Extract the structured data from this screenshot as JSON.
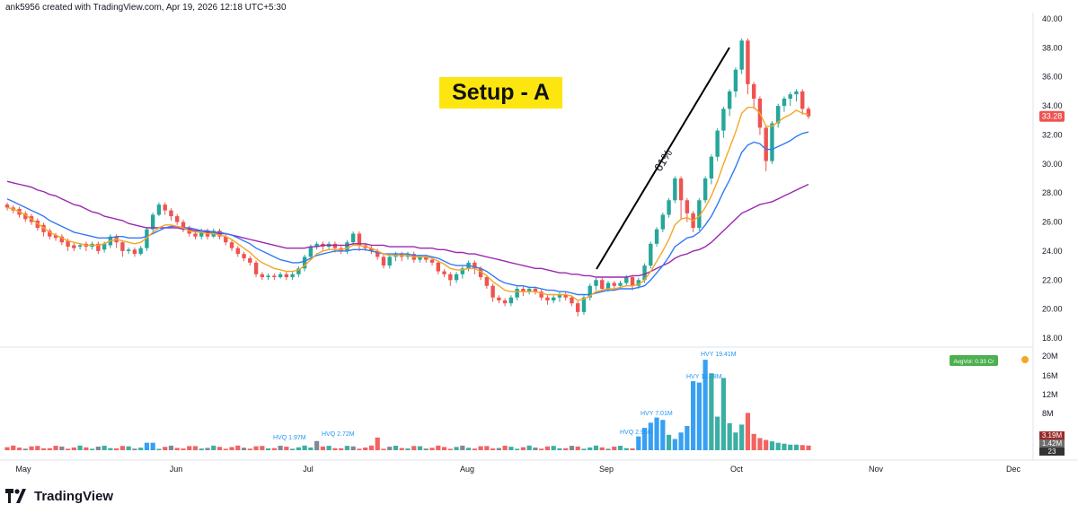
{
  "header": {
    "credit": "ank5956 created with TradingView.com, Apr 19, 2026 12:18 UTC+5:30"
  },
  "annotation": {
    "setup_label": "Setup - A",
    "move_label": "61%"
  },
  "footer": {
    "brand": "TradingView"
  },
  "colors": {
    "up": "#26a69a",
    "down": "#ef5350",
    "ema_fast": "#f5a623",
    "ema_mid": "#3179f5",
    "ema_slow": "#9c27b0",
    "hvq": "#2196f3",
    "badge": "#fde60f"
  },
  "chart_data": {
    "type": "candlestick",
    "x_ticks": [
      "May",
      "Jun",
      "Jul",
      "Aug",
      "Sep",
      "Oct",
      "Nov",
      "Dec"
    ],
    "y_ticks": [
      "40.00",
      "38.00",
      "36.00",
      "34.00",
      "32.00",
      "30.00",
      "28.00",
      "26.00",
      "24.00",
      "22.00",
      "20.00",
      "18.00"
    ],
    "ylim": [
      18,
      40
    ],
    "last_price": "33.28",
    "candles": [
      [
        27.2,
        27.0,
        26.8
      ],
      [
        27.0,
        26.8,
        26.6
      ],
      [
        26.9,
        26.5,
        26.3
      ],
      [
        26.6,
        26.2,
        26.0
      ],
      [
        26.4,
        26.0,
        25.8
      ],
      [
        26.1,
        25.6,
        25.4
      ],
      [
        25.8,
        25.3,
        25.0
      ],
      [
        25.4,
        25.0,
        24.8
      ],
      [
        25.1,
        24.9,
        24.7
      ],
      [
        25.0,
        24.6,
        24.4
      ],
      [
        24.7,
        24.3,
        24.0
      ],
      [
        24.4,
        24.2,
        24.0
      ],
      [
        24.3,
        24.4,
        24.1
      ],
      [
        24.5,
        24.3,
        24.0
      ],
      [
        24.3,
        24.5,
        24.1
      ],
      [
        24.5,
        24.0,
        23.8
      ],
      [
        24.1,
        24.5,
        23.9
      ],
      [
        24.4,
        25.0,
        24.2
      ],
      [
        25.0,
        24.6,
        24.2
      ],
      [
        24.6,
        24.0,
        23.6
      ],
      [
        24.0,
        24.1,
        23.8
      ],
      [
        24.1,
        23.8,
        23.6
      ],
      [
        23.8,
        24.2,
        23.7
      ],
      [
        24.2,
        25.5,
        24.0
      ],
      [
        25.5,
        26.5,
        25.3
      ],
      [
        26.5,
        27.2,
        26.4
      ],
      [
        27.2,
        26.8,
        26.5
      ],
      [
        26.8,
        26.4,
        26.1
      ],
      [
        26.4,
        26.0,
        25.8
      ],
      [
        26.0,
        25.6,
        25.3
      ],
      [
        25.6,
        25.2,
        25.0
      ],
      [
        25.2,
        25.0,
        24.8
      ],
      [
        25.0,
        25.4,
        24.8
      ],
      [
        25.4,
        25.0,
        24.8
      ],
      [
        25.0,
        25.4,
        24.9
      ],
      [
        25.4,
        25.0,
        24.8
      ],
      [
        25.0,
        24.6,
        24.4
      ],
      [
        24.6,
        24.2,
        24.0
      ],
      [
        24.2,
        23.8,
        23.6
      ],
      [
        23.8,
        23.5,
        23.3
      ],
      [
        23.5,
        23.2,
        23.0
      ],
      [
        23.2,
        22.4,
        22.2
      ],
      [
        22.4,
        22.2,
        22.0
      ],
      [
        22.2,
        22.3,
        22.0
      ],
      [
        22.3,
        22.2,
        22.0
      ],
      [
        22.2,
        22.4,
        22.1
      ],
      [
        22.4,
        22.2,
        22.0
      ],
      [
        22.2,
        22.4,
        22.0
      ],
      [
        22.4,
        22.8,
        22.2
      ],
      [
        22.8,
        23.6,
        22.6
      ],
      [
        23.6,
        24.3,
        23.4
      ],
      [
        24.3,
        24.5,
        24.1
      ],
      [
        24.5,
        24.3,
        24.0
      ],
      [
        24.3,
        24.5,
        24.1
      ],
      [
        24.5,
        24.2,
        23.9
      ],
      [
        24.2,
        24.0,
        23.8
      ],
      [
        24.0,
        24.6,
        23.8
      ],
      [
        24.6,
        25.2,
        24.4
      ],
      [
        25.2,
        24.4,
        24.0
      ],
      [
        24.4,
        24.2,
        24.0
      ],
      [
        24.2,
        24.0,
        23.8
      ],
      [
        24.0,
        23.6,
        23.4
      ],
      [
        23.6,
        23.0,
        22.8
      ],
      [
        23.0,
        23.6,
        22.8
      ],
      [
        23.6,
        23.8,
        23.3
      ],
      [
        23.8,
        23.6,
        23.3
      ],
      [
        23.6,
        23.8,
        23.4
      ],
      [
        23.8,
        23.4,
        23.2
      ],
      [
        23.4,
        23.6,
        23.2
      ],
      [
        23.6,
        23.4,
        23.2
      ],
      [
        23.4,
        23.2,
        23.0
      ],
      [
        23.2,
        22.6,
        22.4
      ],
      [
        22.6,
        22.4,
        22.2
      ],
      [
        22.4,
        22.0,
        21.6
      ],
      [
        22.0,
        22.4,
        21.8
      ],
      [
        22.4,
        22.8,
        22.1
      ],
      [
        22.8,
        23.2,
        22.6
      ],
      [
        23.2,
        22.8,
        22.4
      ],
      [
        22.8,
        22.2,
        22.0
      ],
      [
        22.2,
        21.6,
        21.4
      ],
      [
        21.6,
        20.8,
        20.5
      ],
      [
        20.8,
        20.6,
        20.4
      ],
      [
        20.6,
        20.4,
        20.2
      ],
      [
        20.4,
        20.8,
        20.2
      ],
      [
        20.8,
        21.4,
        20.6
      ],
      [
        21.4,
        21.2,
        20.9
      ],
      [
        21.2,
        21.4,
        21.0
      ],
      [
        21.4,
        21.2,
        21.0
      ],
      [
        21.2,
        20.8,
        20.6
      ],
      [
        20.8,
        20.6,
        20.3
      ],
      [
        20.6,
        20.8,
        20.4
      ],
      [
        20.8,
        21.0,
        20.5
      ],
      [
        21.0,
        20.8,
        20.6
      ],
      [
        20.8,
        20.4,
        20.2
      ],
      [
        20.4,
        19.8,
        19.5
      ],
      [
        19.8,
        20.8,
        19.6
      ],
      [
        20.8,
        21.6,
        20.6
      ],
      [
        21.6,
        22.0,
        21.3
      ],
      [
        22.0,
        21.4,
        21.2
      ],
      [
        21.4,
        21.8,
        21.2
      ],
      [
        21.8,
        21.6,
        21.3
      ],
      [
        21.6,
        21.8,
        21.4
      ],
      [
        21.8,
        22.2,
        21.6
      ],
      [
        22.2,
        21.6,
        21.3
      ],
      [
        21.6,
        22.0,
        21.4
      ],
      [
        22.0,
        23.0,
        21.8
      ],
      [
        23.0,
        24.5,
        22.8
      ],
      [
        24.5,
        25.5,
        24.3
      ],
      [
        25.5,
        26.5,
        25.3
      ],
      [
        26.5,
        27.5,
        26.3
      ],
      [
        27.5,
        29.0,
        27.3
      ],
      [
        29.0,
        27.5,
        26.2
      ],
      [
        27.5,
        26.6,
        26.0
      ],
      [
        26.6,
        25.6,
        25.3
      ],
      [
        25.6,
        27.5,
        25.4
      ],
      [
        27.5,
        29.0,
        27.3
      ],
      [
        29.0,
        30.5,
        28.6
      ],
      [
        30.5,
        32.3,
        30.2
      ],
      [
        32.3,
        33.8,
        31.8
      ],
      [
        33.8,
        35.0,
        33.3
      ],
      [
        35.0,
        36.5,
        34.6
      ],
      [
        36.5,
        38.5,
        36.2
      ],
      [
        38.5,
        35.5,
        34.8
      ],
      [
        35.5,
        34.5,
        33.8
      ],
      [
        34.5,
        32.5,
        32.0
      ],
      [
        32.5,
        30.2,
        29.5
      ],
      [
        30.2,
        32.8,
        30.0
      ],
      [
        32.8,
        34.0,
        32.5
      ],
      [
        34.0,
        34.5,
        33.6
      ],
      [
        34.5,
        34.8,
        34.0
      ],
      [
        34.8,
        35.0,
        34.3
      ],
      [
        35.0,
        33.8,
        33.4
      ],
      [
        33.8,
        33.28,
        33.1
      ]
    ],
    "ema_fast": [
      27.0,
      26.9,
      26.7,
      26.5,
      26.2,
      25.9,
      25.6,
      25.3,
      25.1,
      24.9,
      24.7,
      24.6,
      24.5,
      24.4,
      24.4,
      24.4,
      24.5,
      24.7,
      24.8,
      24.7,
      24.6,
      24.5,
      24.6,
      24.9,
      25.3,
      25.6,
      25.8,
      25.8,
      25.7,
      25.6,
      25.4,
      25.3,
      25.3,
      25.2,
      25.2,
      25.1,
      25.0,
      24.8,
      24.5,
      24.2,
      23.9,
      23.5,
      23.2,
      23.0,
      22.8,
      22.7,
      22.6,
      22.6,
      22.7,
      23.0,
      23.4,
      23.8,
      24.0,
      24.1,
      24.1,
      24.1,
      24.2,
      24.4,
      24.4,
      24.3,
      24.2,
      24.0,
      23.8,
      23.7,
      23.7,
      23.7,
      23.7,
      23.6,
      23.6,
      23.6,
      23.5,
      23.3,
      23.1,
      22.8,
      22.7,
      22.7,
      22.8,
      22.8,
      22.6,
      22.3,
      21.9,
      21.6,
      21.3,
      21.2,
      21.2,
      21.2,
      21.2,
      21.2,
      21.1,
      21.0,
      21.0,
      21.0,
      21.0,
      20.9,
      20.6,
      20.7,
      20.9,
      21.2,
      21.3,
      21.4,
      21.4,
      21.5,
      21.6,
      21.6,
      21.7,
      22.0,
      22.6,
      23.3,
      24.0,
      24.8,
      25.8,
      26.2,
      26.3,
      26.1,
      26.4,
      27.0,
      27.8,
      28.8,
      30.0,
      31.1,
      32.2,
      33.5,
      33.9,
      33.9,
      33.5,
      32.6,
      32.6,
      32.9,
      33.2,
      33.4,
      33.7,
      33.5,
      33.4
    ],
    "ema_mid": [
      27.6,
      27.4,
      27.2,
      27.0,
      26.8,
      26.6,
      26.4,
      26.1,
      25.9,
      25.7,
      25.5,
      25.3,
      25.2,
      25.1,
      25.0,
      24.9,
      24.9,
      24.9,
      25.0,
      25.0,
      24.9,
      24.9,
      24.9,
      25.0,
      25.2,
      25.4,
      25.6,
      25.7,
      25.7,
      25.6,
      25.6,
      25.5,
      25.4,
      25.4,
      25.3,
      25.3,
      25.2,
      25.1,
      24.9,
      24.7,
      24.5,
      24.2,
      24.0,
      23.8,
      23.6,
      23.4,
      23.3,
      23.2,
      23.2,
      23.3,
      23.5,
      23.7,
      23.8,
      23.9,
      24.0,
      24.0,
      24.0,
      24.1,
      24.1,
      24.1,
      24.0,
      23.9,
      23.8,
      23.8,
      23.8,
      23.8,
      23.8,
      23.7,
      23.7,
      23.7,
      23.6,
      23.5,
      23.3,
      23.1,
      23.0,
      23.0,
      23.0,
      22.9,
      22.8,
      22.6,
      22.3,
      22.0,
      21.8,
      21.7,
      21.6,
      21.6,
      21.5,
      21.5,
      21.4,
      21.3,
      21.3,
      21.2,
      21.2,
      21.1,
      21.0,
      21.0,
      21.0,
      21.1,
      21.2,
      21.3,
      21.3,
      21.4,
      21.4,
      21.4,
      21.5,
      21.6,
      22.0,
      22.5,
      23.0,
      23.6,
      24.3,
      24.6,
      24.9,
      25.0,
      25.3,
      25.8,
      26.4,
      27.2,
      28.1,
      28.9,
      29.8,
      30.8,
      31.3,
      31.5,
      31.4,
      31.0,
      31.0,
      31.2,
      31.4,
      31.6,
      31.9,
      32.1,
      32.2
    ],
    "ema_slow": [
      28.8,
      28.7,
      28.6,
      28.5,
      28.4,
      28.2,
      28.1,
      27.9,
      27.8,
      27.6,
      27.4,
      27.2,
      27.1,
      26.9,
      26.7,
      26.6,
      26.4,
      26.3,
      26.2,
      26.1,
      25.9,
      25.8,
      25.7,
      25.6,
      25.6,
      25.6,
      25.6,
      25.6,
      25.6,
      25.5,
      25.5,
      25.4,
      25.4,
      25.3,
      25.3,
      25.2,
      25.2,
      25.1,
      25.0,
      24.9,
      24.8,
      24.7,
      24.6,
      24.5,
      24.4,
      24.3,
      24.2,
      24.2,
      24.2,
      24.2,
      24.3,
      24.3,
      24.4,
      24.4,
      24.4,
      24.4,
      24.4,
      24.5,
      24.5,
      24.5,
      24.4,
      24.4,
      24.4,
      24.3,
      24.3,
      24.3,
      24.3,
      24.3,
      24.2,
      24.2,
      24.2,
      24.1,
      24.1,
      24.0,
      23.9,
      23.9,
      23.8,
      23.8,
      23.7,
      23.6,
      23.5,
      23.4,
      23.3,
      23.2,
      23.1,
      23.0,
      22.9,
      22.8,
      22.8,
      22.7,
      22.6,
      22.5,
      22.5,
      22.4,
      22.4,
      22.3,
      22.3,
      22.2,
      22.2,
      22.2,
      22.2,
      22.2,
      22.2,
      22.3,
      22.3,
      22.4,
      22.6,
      22.8,
      23.0,
      23.2,
      23.5,
      23.7,
      23.8,
      24.0,
      24.1,
      24.3,
      24.6,
      25.0,
      25.4,
      25.8,
      26.2,
      26.6,
      26.8,
      27.0,
      27.2,
      27.3,
      27.4,
      27.6,
      27.8,
      28.0,
      28.2,
      28.4,
      28.6
    ],
    "volume": {
      "labels": [
        "HVQ 1.97M",
        "HVQ 2.72M",
        "HVQ 2.96M",
        "HVY 7.01M",
        "HVY 14.78M",
        "HVY 19.41M"
      ],
      "axis_ticks": [
        "20M",
        "16M",
        "12M",
        "8M"
      ],
      "avg_label": "AvgVol: 0.33 Cr",
      "badges": [
        "3.19M",
        "1.42M",
        "23"
      ]
    }
  }
}
